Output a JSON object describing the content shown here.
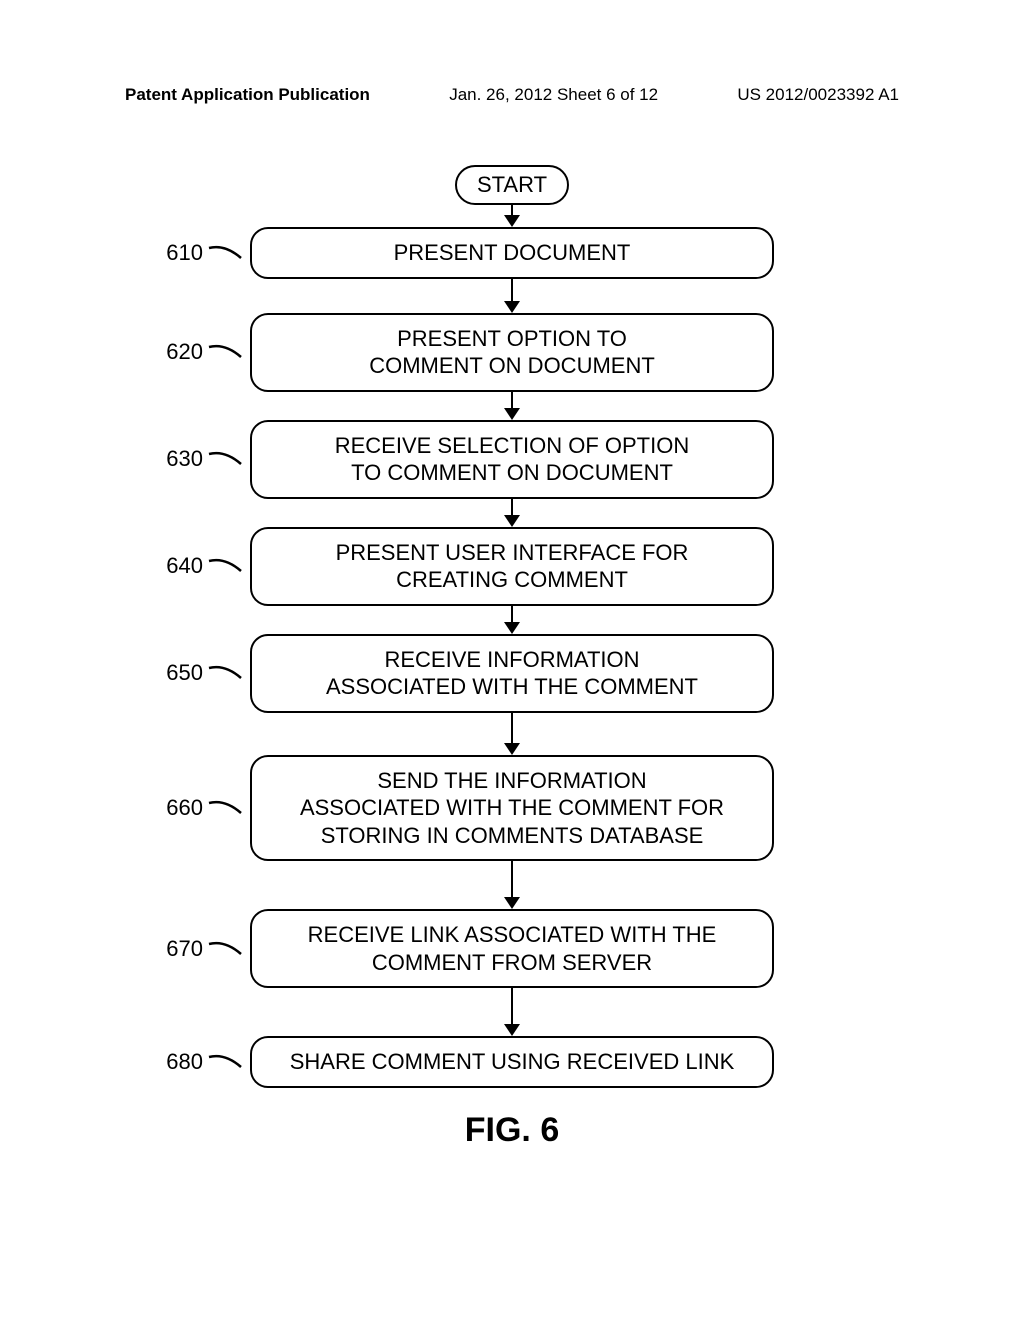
{
  "header": {
    "left": "Patent Application Publication",
    "center": "Jan. 26, 2012  Sheet 6 of 12",
    "right": "US 2012/0023392 A1"
  },
  "flowchart": {
    "start": "START",
    "steps": [
      {
        "id": "610",
        "text": "PRESENT DOCUMENT"
      },
      {
        "id": "620",
        "text": "PRESENT OPTION TO\nCOMMENT ON DOCUMENT"
      },
      {
        "id": "630",
        "text": "RECEIVE SELECTION OF OPTION\nTO COMMENT ON DOCUMENT"
      },
      {
        "id": "640",
        "text": "PRESENT USER INTERFACE FOR\nCREATING COMMENT"
      },
      {
        "id": "650",
        "text": "RECEIVE INFORMATION\nASSOCIATED WITH THE COMMENT"
      },
      {
        "id": "660",
        "text": "SEND THE INFORMATION\nASSOCIATED WITH THE COMMENT FOR\nSTORING IN COMMENTS DATABASE"
      },
      {
        "id": "670",
        "text": "RECEIVE LINK ASSOCIATED WITH THE\nCOMMENT FROM SERVER"
      },
      {
        "id": "680",
        "text": "SHARE COMMENT USING RECEIVED LINK"
      }
    ],
    "arrow_short": 14,
    "arrow_med": 28,
    "arrow_long": 40
  },
  "figure_label": "FIG. 6",
  "colors": {
    "stroke": "#000000",
    "bg": "#ffffff"
  }
}
